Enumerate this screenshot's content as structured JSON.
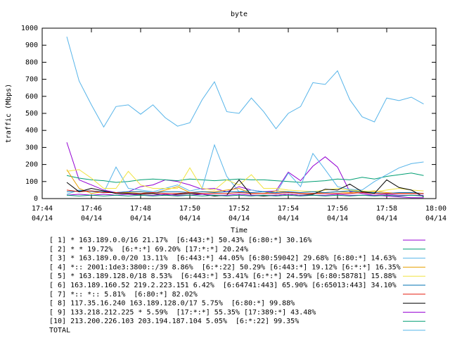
{
  "chart_data": {
    "type": "line",
    "title": "byte",
    "x_label": "Time",
    "y_label": "traffic (Mbps)",
    "x": [
      "17:45:00",
      "17:45:30",
      "17:46:00",
      "17:46:30",
      "17:47:00",
      "17:47:30",
      "17:48:00",
      "17:48:30",
      "17:49:00",
      "17:49:30",
      "17:50:00",
      "17:50:30",
      "17:51:00",
      "17:51:30",
      "17:52:00",
      "17:52:30",
      "17:53:00",
      "17:53:30",
      "17:54:00",
      "17:54:30",
      "17:55:00",
      "17:55:30",
      "17:56:00",
      "17:56:30",
      "17:57:00",
      "17:57:30",
      "17:58:00",
      "17:58:30",
      "17:59:00",
      "17:59:30"
    ],
    "xlim": [
      "17:44",
      "18:00"
    ],
    "xticks": [
      {
        "value": "17:44",
        "label": "17:44",
        "date": "04/14"
      },
      {
        "value": "17:46",
        "label": "17:46",
        "date": "04/14"
      },
      {
        "value": "17:48",
        "label": "17:48",
        "date": "04/14"
      },
      {
        "value": "17:50",
        "label": "17:50",
        "date": "04/14"
      },
      {
        "value": "17:52",
        "label": "17:52",
        "date": "04/14"
      },
      {
        "value": "17:54",
        "label": "17:54",
        "date": "04/14"
      },
      {
        "value": "17:56",
        "label": "17:56",
        "date": "04/14"
      },
      {
        "value": "17:58",
        "label": "17:58",
        "date": "04/14"
      },
      {
        "value": "18:00",
        "label": "18:00",
        "date": "04/14"
      }
    ],
    "ylim": [
      0,
      1000
    ],
    "yticks": [
      0,
      100,
      200,
      300,
      400,
      500,
      600,
      700,
      800,
      900,
      1000
    ],
    "series": [
      {
        "name": "[ 1] * 163.189.0.0/16 21.17%  [6:443:*] 50.43% [6:80:*] 30.16%",
        "color": "#9400d3",
        "values": [
          330,
          110,
          80,
          50,
          35,
          40,
          70,
          80,
          110,
          100,
          80,
          55,
          60,
          40,
          70,
          50,
          40,
          45,
          155,
          105,
          190,
          245,
          185,
          40,
          30,
          20,
          15,
          10,
          5,
          5
        ]
      },
      {
        "name": "[ 2] * * 19.72%  [6:*:*] 69.20% [17:*:*] 20.24%",
        "color": "#009e73",
        "values": [
          135,
          120,
          110,
          105,
          95,
          100,
          110,
          115,
          110,
          105,
          115,
          110,
          105,
          110,
          115,
          110,
          110,
          105,
          100,
          95,
          100,
          105,
          115,
          110,
          125,
          115,
          130,
          140,
          150,
          135
        ]
      },
      {
        "name": "[ 3] * 163.189.0.0/20 13.11%  [6:443:*] 44.05% [6:80:59042] 29.68% [6:80:*] 14.63%",
        "color": "#56b4e9",
        "values": [
          25,
          50,
          40,
          35,
          185,
          60,
          50,
          40,
          60,
          80,
          45,
          60,
          315,
          130,
          40,
          50,
          40,
          30,
          150,
          70,
          265,
          170,
          70,
          55,
          50,
          100,
          140,
          180,
          205,
          215
        ]
      },
      {
        "name": "[ 4] *:: 2001:1de3:3800::/39 8.86%  [6:*:22] 50.29% [6:443:*] 19.12% [6:*:*] 16.35%",
        "color": "#e69f00",
        "values": [
          170,
          60,
          30,
          40,
          35,
          35,
          40,
          30,
          50,
          70,
          35,
          40,
          40,
          50,
          60,
          30,
          30,
          45,
          40,
          30,
          30,
          35,
          40,
          35,
          40,
          45,
          35,
          30,
          30,
          30
        ]
      },
      {
        "name": "[ 5] * 163.189.128.0/18 8.53%  [6:443:*] 53.41% [6:*:*] 24.59% [6:80:58781] 15.88%",
        "color": "#f0e442",
        "values": [
          160,
          170,
          120,
          60,
          60,
          160,
          80,
          60,
          60,
          60,
          180,
          60,
          50,
          110,
          80,
          140,
          60,
          60,
          50,
          45,
          40,
          50,
          60,
          50,
          45,
          40,
          50,
          60,
          50,
          45
        ]
      },
      {
        "name": "[ 6] 163.189.160.52 219.2.223.151 6.42%  [6:64741:443] 65.90% [6:65013:443] 34.10%",
        "color": "#0072b2",
        "values": [
          40,
          45,
          45,
          40,
          35,
          40,
          40,
          35,
          40,
          40,
          35,
          40,
          35,
          40,
          40,
          35,
          40,
          35,
          40,
          35,
          40,
          35,
          40,
          45,
          40,
          35,
          30,
          35,
          35,
          30
        ]
      },
      {
        "name": "[ 7] *:: *:: 5.81%  [6:80:*] 82.02%",
        "color": "#e51e10",
        "values": [
          50,
          40,
          45,
          35,
          35,
          30,
          30,
          35,
          30,
          30,
          35,
          30,
          30,
          30,
          35,
          30,
          30,
          30,
          35,
          30,
          30,
          30,
          30,
          30,
          35,
          30,
          30,
          30,
          30,
          30
        ]
      },
      {
        "name": "[ 8] 117.35.16.240 163.189.128.0/17 5.75%  [6:80:*] 99.88%",
        "color": "#000000",
        "values": [
          95,
          40,
          60,
          45,
          30,
          30,
          25,
          30,
          20,
          25,
          30,
          25,
          15,
          20,
          110,
          20,
          15,
          20,
          25,
          20,
          25,
          55,
          50,
          85,
          40,
          30,
          110,
          65,
          50,
          10
        ]
      },
      {
        "name": "[ 9] 133.218.212.225 * 5.59%  [17:*:*] 55.35% [17:389:*] 43.48%",
        "color": "#9400d3",
        "values": [
          20,
          25,
          20,
          25,
          20,
          25,
          20,
          20,
          25,
          20,
          20,
          25,
          20,
          20,
          25,
          20,
          20,
          20,
          25,
          20,
          20,
          20,
          25,
          20,
          20,
          20,
          25,
          20,
          20,
          20
        ]
      },
      {
        "name": "[10] 213.200.226.103 203.194.187.104 5.05%  [6:*:22] 99.35%",
        "color": "#009e73",
        "values": [
          20,
          15,
          20,
          15,
          20,
          15,
          20,
          15,
          20,
          15,
          20,
          15,
          20,
          15,
          20,
          15,
          20,
          15,
          20,
          15,
          20,
          15,
          20,
          15,
          20,
          15,
          20,
          15,
          20,
          15
        ]
      },
      {
        "name": "TOTAL",
        "color": "#56b4e9",
        "values": [
          950,
          690,
          550,
          420,
          540,
          550,
          495,
          550,
          475,
          425,
          445,
          580,
          685,
          510,
          500,
          590,
          510,
          410,
          500,
          540,
          680,
          670,
          750,
          580,
          480,
          450,
          590,
          575,
          595,
          555
        ]
      }
    ]
  }
}
